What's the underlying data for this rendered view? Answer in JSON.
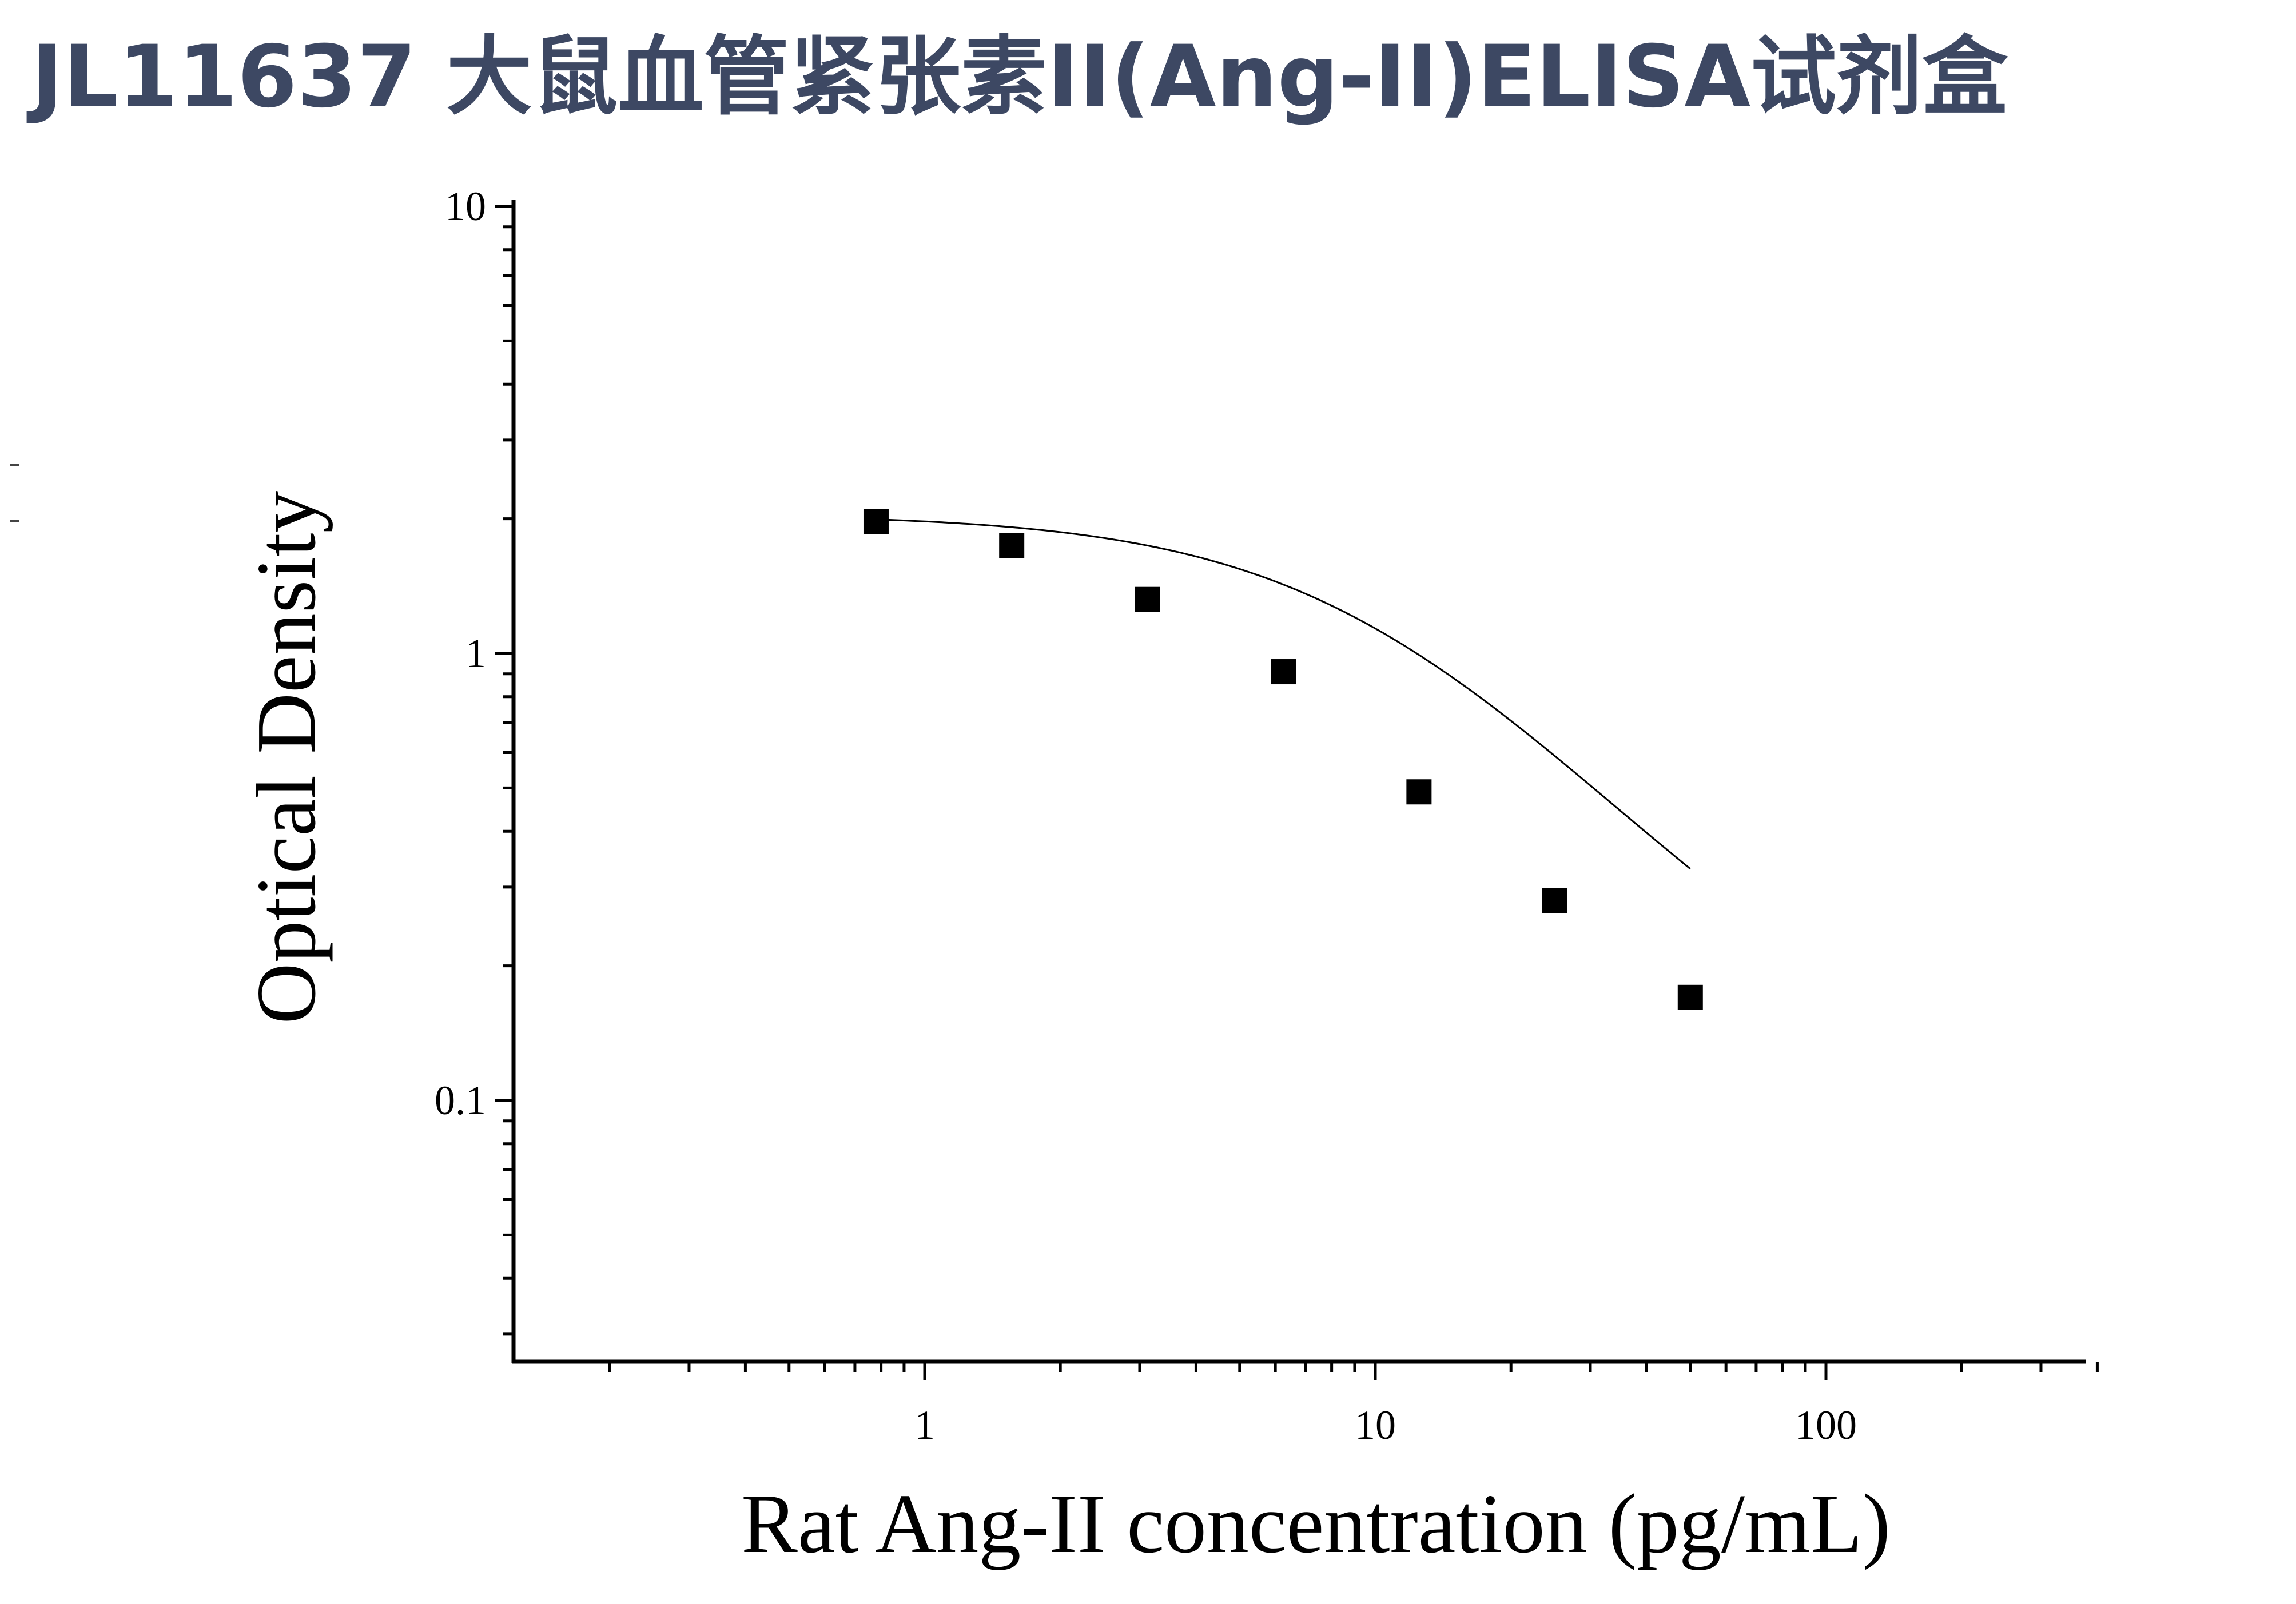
{
  "page": {
    "title": "JL11637 大鼠血管紧张素II(Ang-II)ELISA试剂盒",
    "title_color": "#3d4863"
  },
  "chart_data": {
    "type": "scatter",
    "xlabel": "Rat Ang-II concentration (pg/mL)",
    "ylabel": "Optical Density",
    "x_scale": "log",
    "y_scale": "log",
    "xlim": [
      0.125,
      400
    ],
    "ylim": [
      0.03,
      10
    ],
    "x_ticks": [
      {
        "value": 1,
        "label": "1"
      },
      {
        "value": 10,
        "label": "10"
      },
      {
        "value": 100,
        "label": "100"
      }
    ],
    "y_ticks": [
      {
        "value": 0.1,
        "label": "0.1"
      },
      {
        "value": 1,
        "label": "1"
      },
      {
        "value": 10,
        "label": "10"
      }
    ],
    "grid": false,
    "legend": false,
    "marker": "square",
    "marker_color": "#000000",
    "series": [
      {
        "x": [
          0.78,
          1.56,
          3.12,
          6.25,
          12.5,
          25,
          50
        ],
        "y": [
          1.97,
          1.74,
          1.32,
          0.91,
          0.49,
          0.28,
          0.17
        ]
      }
    ],
    "fit_curve": {
      "type": "4PL",
      "top": 2.05,
      "bottom": 0.1,
      "ec50": 11,
      "hill": 1.33,
      "x_range": [
        0.78,
        50
      ]
    }
  }
}
